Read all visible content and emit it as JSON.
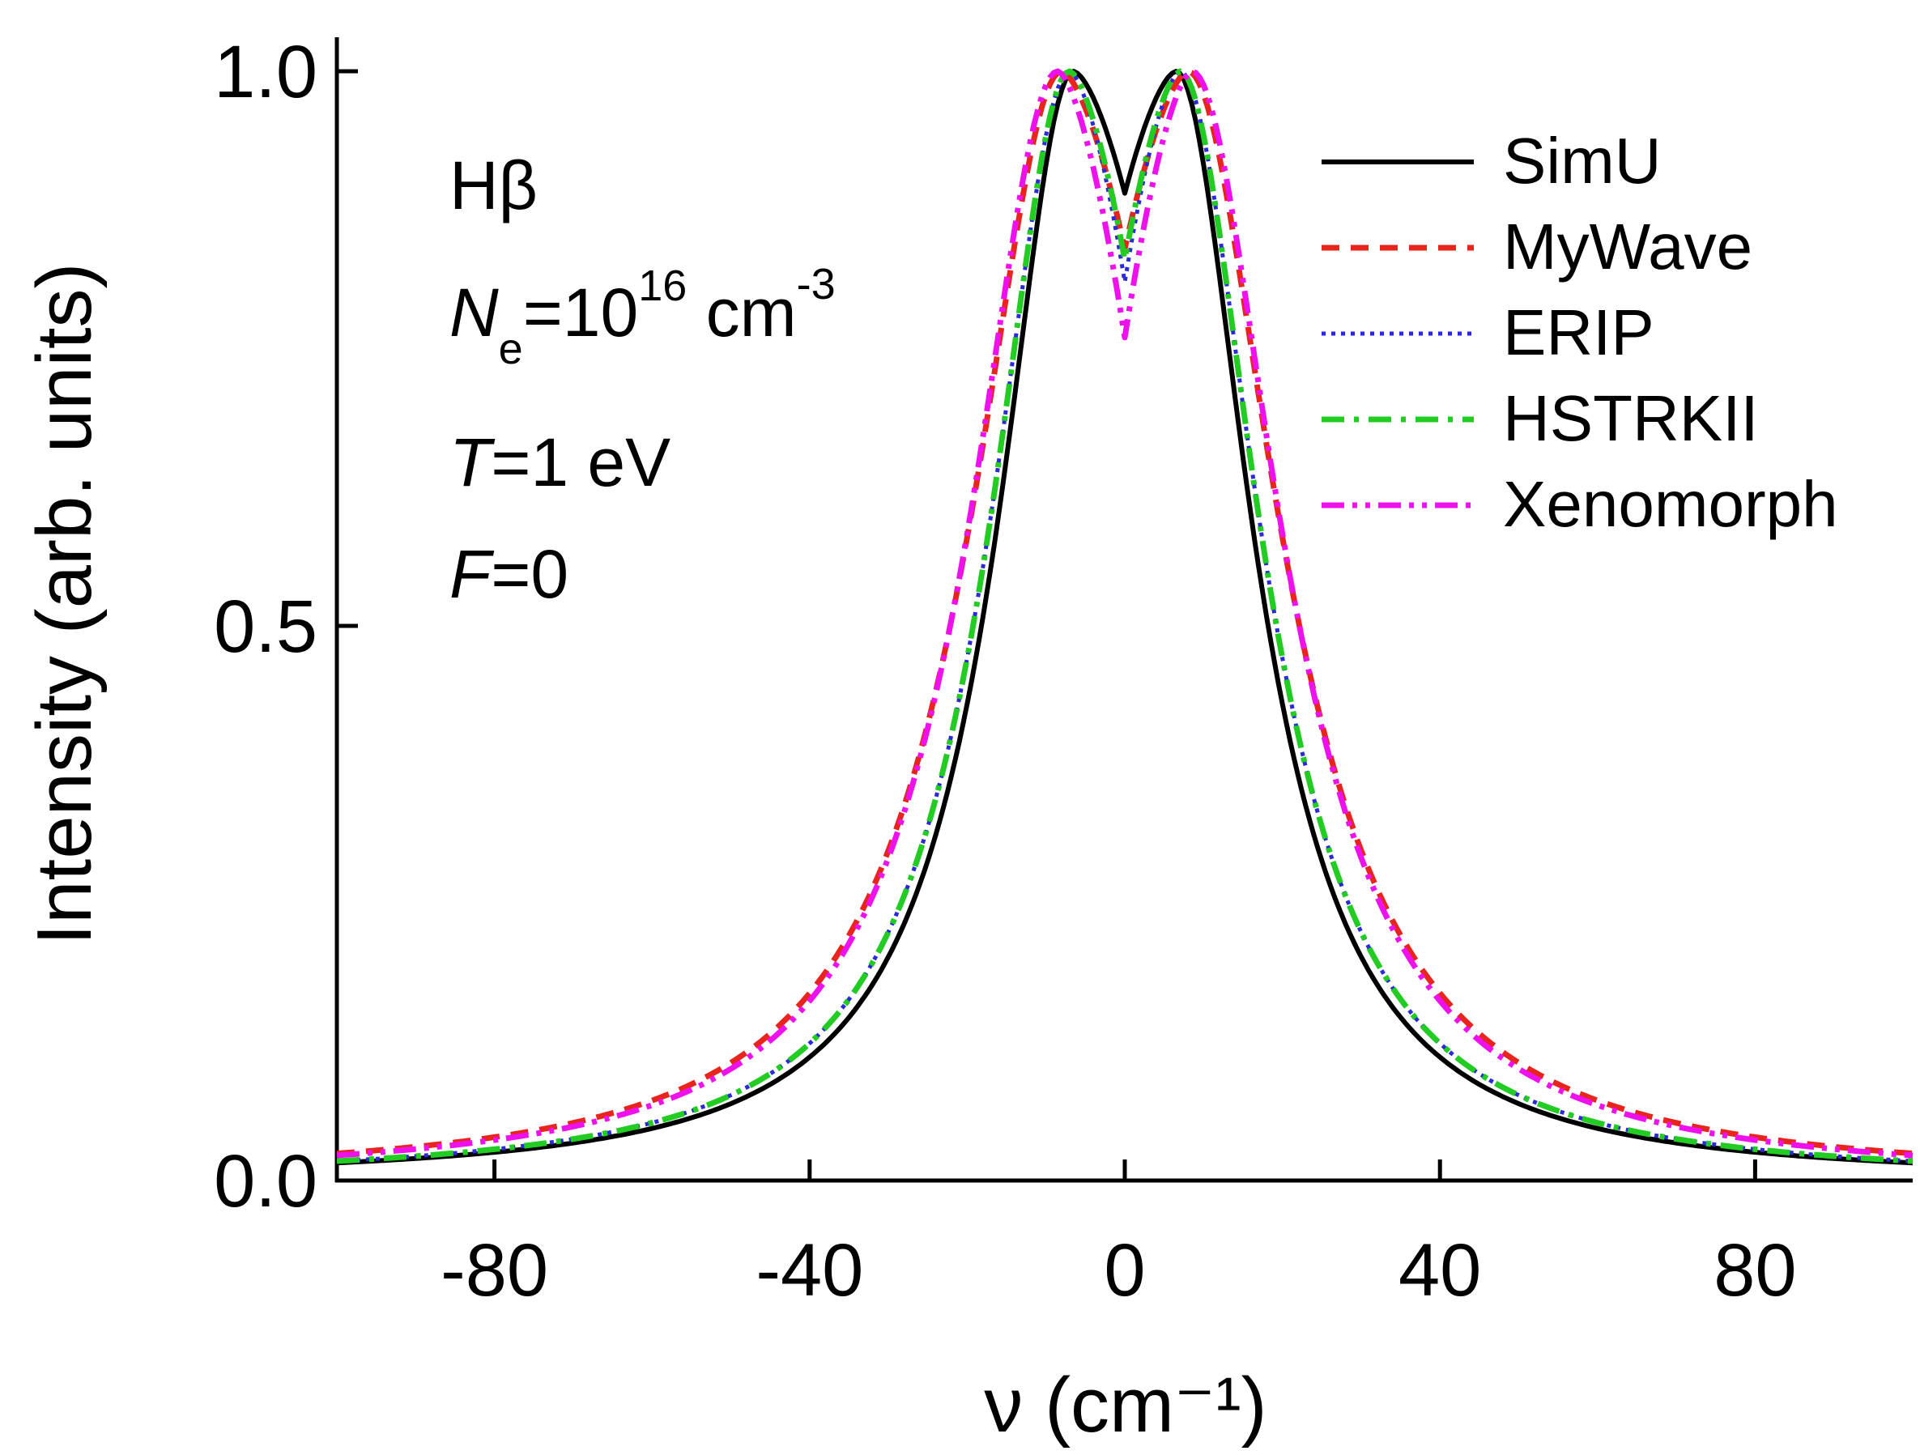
{
  "chart_data": {
    "type": "line",
    "title": "",
    "xlabel": "ν (cm⁻¹)",
    "ylabel": "Intensity (arb. units)",
    "xlim": [
      -100,
      100
    ],
    "ylim": [
      0,
      1.0
    ],
    "xticks": [
      -80,
      -40,
      0,
      40,
      80
    ],
    "xtick_labels": [
      "-80",
      "-40",
      "0",
      "40",
      "80"
    ],
    "yticks": [
      0,
      0.5,
      1.0
    ],
    "ytick_labels": [
      "0.0",
      "0.5",
      "1.0"
    ],
    "grid": false,
    "legend_position": "top-right",
    "annotations": {
      "line": "Hβ",
      "density_symbol": "N",
      "density_sub": "e",
      "density_eq": "=10",
      "density_exp": "16",
      "density_unit": " cm",
      "density_unit_exp": "-3",
      "temp_symbol": "T",
      "temp_value": "=1 eV",
      "field_symbol": "F",
      "field_value": "=0"
    },
    "series": [
      {
        "name": "SimU",
        "color": "#000000",
        "style": "solid",
        "peak_x": 6.5,
        "peak_width": 10.4,
        "dip_depth": 0.11,
        "dip_width": 2.8,
        "tail_gamma": 13.5,
        "tail_y_at_100": 0.018
      },
      {
        "name": "MyWave",
        "color": "#e8241d",
        "style": "dash",
        "peak_x": 8.0,
        "peak_width": 12.2,
        "dip_depth": 0.16,
        "dip_width": 3.2,
        "tail_gamma": 17.0,
        "tail_y_at_100": 0.027
      },
      {
        "name": "ERIP",
        "color": "#2a2ad6",
        "style": "dot",
        "peak_x": 7.0,
        "peak_width": 11.0,
        "dip_depth": 0.19,
        "dip_width": 3.0,
        "tail_gamma": 14.0,
        "tail_y_at_100": 0.019
      },
      {
        "name": "HSTRKII",
        "color": "#22cc22",
        "style": "dashdot",
        "peak_x": 7.0,
        "peak_width": 11.0,
        "dip_depth": 0.17,
        "dip_width": 3.0,
        "tail_gamma": 14.0,
        "tail_y_at_100": 0.017
      },
      {
        "name": "Xenomorph",
        "color": "#ee11ee",
        "style": "dashdotdot",
        "peak_x": 8.5,
        "peak_width": 12.0,
        "dip_depth": 0.24,
        "dip_width": 3.2,
        "tail_gamma": 16.0,
        "tail_y_at_100": 0.021
      }
    ]
  }
}
